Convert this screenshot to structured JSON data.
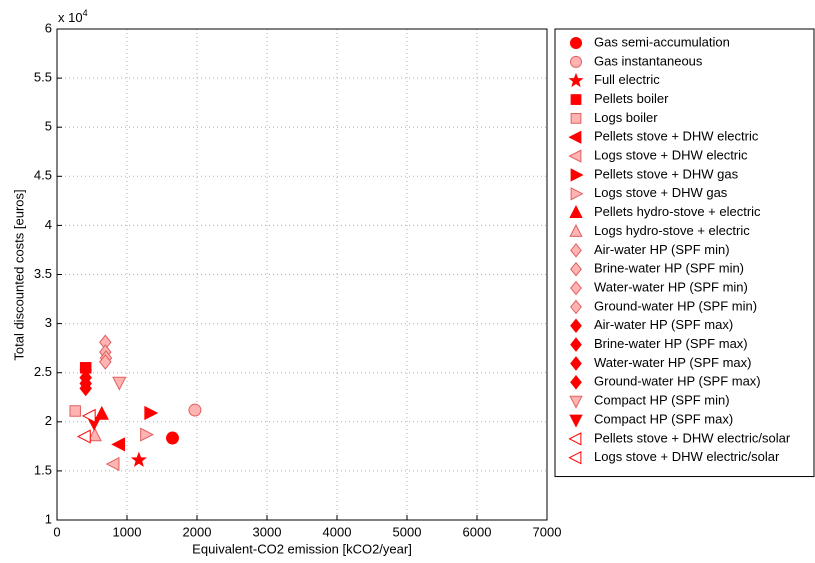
{
  "chart_data": {
    "type": "scatter",
    "xlabel": "Equivalent-CO2 emission [kCO2/year]",
    "ylabel": "Total discounted costs [euros]",
    "y_multiplier": {
      "base": "x 10",
      "exponent": "4"
    },
    "xlim": [
      0,
      7000
    ],
    "xticks": [
      0,
      1000,
      2000,
      3000,
      4000,
      5000,
      6000,
      7000
    ],
    "ylim": [
      1,
      6
    ],
    "yticks": [
      1,
      1.5,
      2,
      2.5,
      3,
      3.5,
      4,
      4.5,
      5,
      5.5,
      6
    ],
    "grid": true,
    "legend": "outside-right",
    "series": [
      {
        "name": "Gas semi-accumulation",
        "marker": "circle",
        "color": "#ff0000",
        "edgecolor": "#ff0000",
        "x": [
          1650
        ],
        "values": [
          1.835
        ]
      },
      {
        "name": "Gas instantaneous",
        "marker": "circle",
        "color": "#ffb3b3",
        "edgecolor": "#e06060",
        "x": [
          1970
        ],
        "values": [
          2.12
        ]
      },
      {
        "name": "Full electric",
        "marker": "star",
        "color": "#ff0000",
        "edgecolor": "#ff0000",
        "x": [
          1170
        ],
        "values": [
          1.61
        ]
      },
      {
        "name": "Pellets boiler",
        "marker": "square",
        "color": "#ff0000",
        "edgecolor": "#ff0000",
        "x": [
          410
        ],
        "values": [
          2.55
        ]
      },
      {
        "name": "Logs boiler",
        "marker": "square",
        "color": "#ffb3b3",
        "edgecolor": "#e06060",
        "x": [
          260
        ],
        "values": [
          2.11
        ]
      },
      {
        "name": "Pellets stove + DHW electric",
        "marker": "left",
        "color": "#ff0000",
        "edgecolor": "#ff0000",
        "x": [
          890
        ],
        "values": [
          1.77
        ]
      },
      {
        "name": "Logs stove + DHW electric",
        "marker": "left",
        "color": "#ffb3b3",
        "edgecolor": "#e06060",
        "x": [
          810
        ],
        "values": [
          1.57
        ]
      },
      {
        "name": "Pellets stove + DHW gas",
        "marker": "right",
        "color": "#ff0000",
        "edgecolor": "#ff0000",
        "x": [
          1330
        ],
        "values": [
          2.09
        ]
      },
      {
        "name": "Logs stove + DHW gas",
        "marker": "right",
        "color": "#ffb3b3",
        "edgecolor": "#e06060",
        "x": [
          1270
        ],
        "values": [
          1.87
        ]
      },
      {
        "name": "Pellets hydro-stove + electric",
        "marker": "up",
        "color": "#ff0000",
        "edgecolor": "#ff0000",
        "x": [
          640
        ],
        "values": [
          2.08
        ]
      },
      {
        "name": "Logs hydro-stove + electric",
        "marker": "up",
        "color": "#ffb3b3",
        "edgecolor": "#e06060",
        "x": [
          540
        ],
        "values": [
          1.86
        ]
      },
      {
        "name": "Air-water HP (SPF min)",
        "marker": "diamond",
        "color": "#ffb3b3",
        "edgecolor": "#e06060",
        "x": [
          690
        ],
        "values": [
          2.81
        ]
      },
      {
        "name": "Brine-water HP (SPF min)",
        "marker": "diamond",
        "color": "#ffb3b3",
        "edgecolor": "#e06060",
        "x": [
          690
        ],
        "values": [
          2.71
        ]
      },
      {
        "name": "Water-water HP (SPF min)",
        "marker": "diamond",
        "color": "#ffb3b3",
        "edgecolor": "#e06060",
        "x": [
          700
        ],
        "values": [
          2.65
        ]
      },
      {
        "name": "Ground-water HP (SPF min)",
        "marker": "diamond",
        "color": "#ffb3b3",
        "edgecolor": "#e06060",
        "x": [
          690
        ],
        "values": [
          2.61
        ]
      },
      {
        "name": "Air-water HP (SPF max)",
        "marker": "diamond",
        "color": "#ff0000",
        "edgecolor": "#ff0000",
        "x": [
          410
        ],
        "values": [
          2.53
        ]
      },
      {
        "name": "Brine-water HP (SPF max)",
        "marker": "diamond",
        "color": "#ff0000",
        "edgecolor": "#ff0000",
        "x": [
          410
        ],
        "values": [
          2.45
        ]
      },
      {
        "name": "Water-water HP (SPF max)",
        "marker": "diamond",
        "color": "#ff0000",
        "edgecolor": "#ff0000",
        "x": [
          410
        ],
        "values": [
          2.39
        ]
      },
      {
        "name": "Ground-water HP (SPF max)",
        "marker": "diamond",
        "color": "#ff0000",
        "edgecolor": "#ff0000",
        "x": [
          410
        ],
        "values": [
          2.34
        ]
      },
      {
        "name": "Compact HP (SPF min)",
        "marker": "down",
        "color": "#ffb3b3",
        "edgecolor": "#e06060",
        "x": [
          890
        ],
        "values": [
          2.4
        ]
      },
      {
        "name": "Compact HP (SPF max)",
        "marker": "down",
        "color": "#ff0000",
        "edgecolor": "#ff0000",
        "x": [
          530
        ],
        "values": [
          1.99
        ]
      },
      {
        "name": "Pellets stove + DHW electric/solar",
        "marker": "left",
        "color": "#ffffff",
        "edgecolor": "#ff0000",
        "x": [
          470
        ],
        "values": [
          2.06
        ]
      },
      {
        "name": "Logs stove + DHW electric/solar",
        "marker": "left",
        "color": "#ffffff",
        "edgecolor": "#ff0000",
        "x": [
          400
        ],
        "values": [
          1.85
        ]
      }
    ]
  }
}
